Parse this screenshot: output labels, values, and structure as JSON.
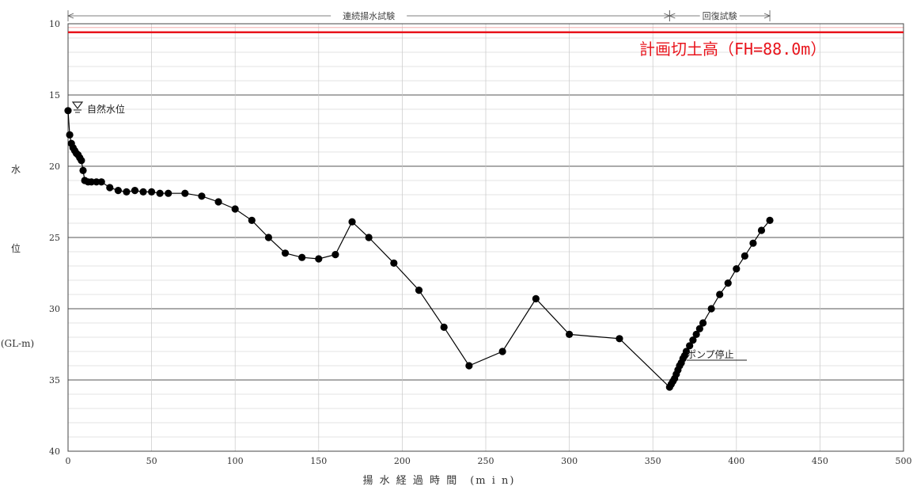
{
  "colors": {
    "plan_line": "#e8141c",
    "series": "#000000",
    "axis": "#444444",
    "grid": "#c8c8c8"
  },
  "chart_data": {
    "type": "scatter",
    "title": "",
    "xlabel": "揚 水 経 過 時 間　(m i n)",
    "ylabel_parts": [
      "水",
      "位",
      "(GL-m)"
    ],
    "xlim": [
      0,
      500
    ],
    "ylim": [
      10,
      40
    ],
    "y_inverted": true,
    "x_ticks": [
      "0",
      "50",
      "100",
      "150",
      "200",
      "250",
      "300",
      "350",
      "400",
      "450",
      "500"
    ],
    "y_ticks": [
      "10",
      "15",
      "20",
      "25",
      "30",
      "35",
      "40"
    ],
    "grid": true,
    "phases": [
      {
        "label": "連続揚水試験",
        "x_start": 0,
        "x_end": 360
      },
      {
        "label": "回復試験",
        "x_start": 360,
        "x_end": 420
      }
    ],
    "plan_line": {
      "label": "計画切土高（FH=88.0m）",
      "y": 10.6
    },
    "annotations": {
      "natural_level": "自然水位",
      "pump_stop": "ポンプ停止"
    },
    "series": [
      {
        "x": [
          0,
          1,
          2,
          3,
          4,
          5,
          6,
          7,
          8,
          9,
          10,
          12,
          14,
          17,
          20,
          25,
          30,
          35,
          40,
          45,
          50,
          55,
          60,
          70,
          80,
          90,
          100,
          110,
          120,
          130,
          140,
          150,
          160,
          170,
          180,
          195,
          210,
          225,
          240,
          260,
          280,
          300,
          330,
          360,
          361,
          362,
          363,
          364,
          365,
          366,
          367,
          368,
          369,
          370,
          372,
          374,
          376,
          378,
          380,
          385,
          390,
          395,
          400,
          405,
          410,
          415,
          420
        ],
        "y": [
          16.1,
          17.8,
          18.4,
          18.7,
          18.9,
          19.1,
          19.2,
          19.4,
          19.6,
          20.3,
          21.0,
          21.1,
          21.1,
          21.1,
          21.1,
          21.5,
          21.7,
          21.8,
          21.7,
          21.8,
          21.8,
          21.9,
          21.9,
          21.9,
          22.1,
          22.5,
          23.0,
          23.8,
          25.0,
          26.1,
          26.4,
          26.5,
          26.2,
          23.9,
          25.0,
          26.8,
          28.7,
          31.3,
          34.0,
          33.0,
          29.3,
          31.8,
          32.1,
          35.5,
          35.3,
          35.1,
          34.9,
          34.6,
          34.3,
          34.0,
          33.8,
          33.5,
          33.3,
          33.0,
          32.6,
          32.2,
          31.8,
          31.4,
          31.0,
          30.0,
          29.0,
          28.2,
          27.2,
          26.3,
          25.4,
          24.5,
          23.8
        ]
      }
    ]
  }
}
